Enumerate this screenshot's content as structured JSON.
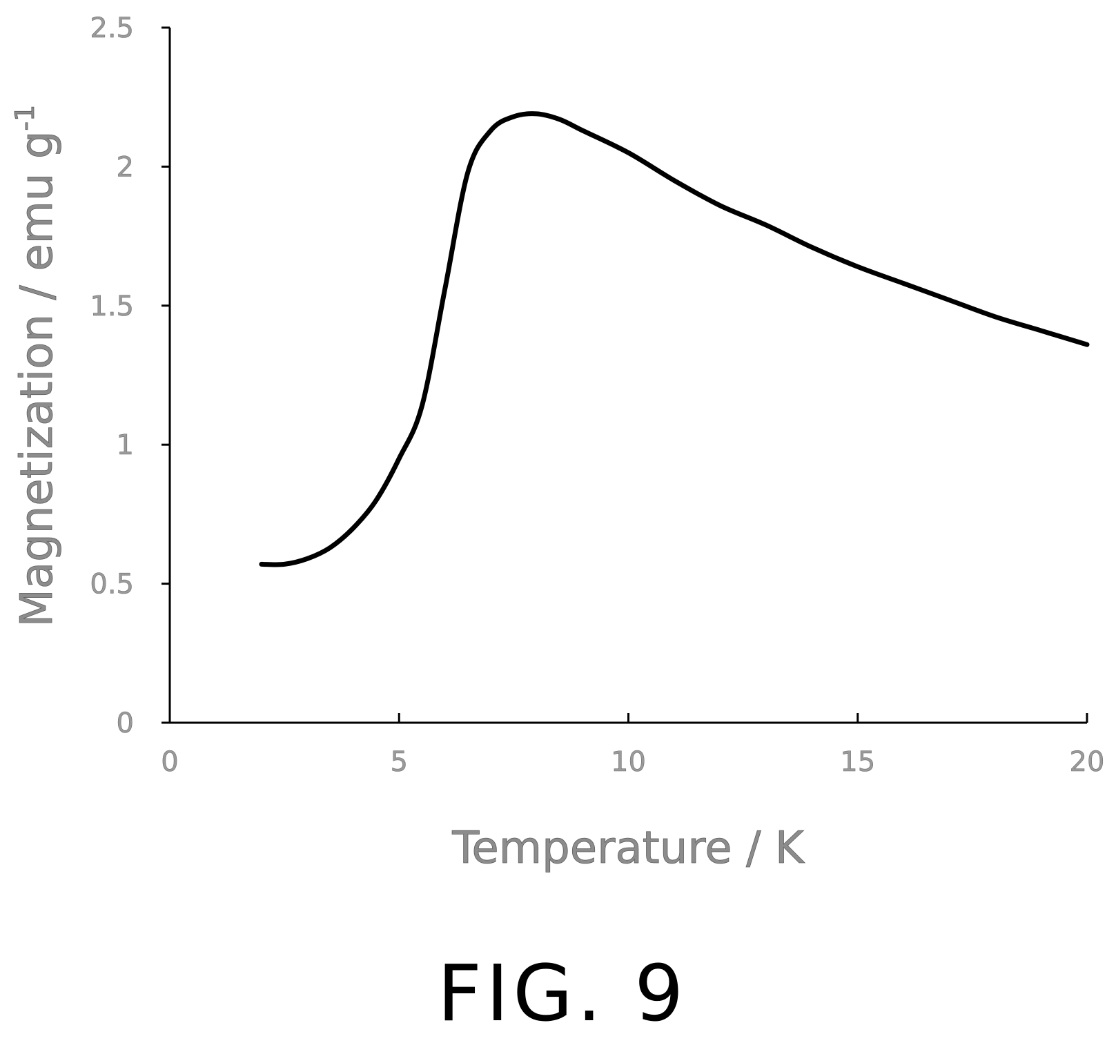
{
  "chart_data": {
    "type": "line",
    "xlabel": "Temperature / K",
    "ylabel_main": "Magnetization / emu g",
    "ylabel_sup": "-1",
    "xlim": [
      0,
      20
    ],
    "ylim": [
      0,
      2.5
    ],
    "x_ticks": [
      {
        "value": 0,
        "label": "0"
      },
      {
        "value": 5,
        "label": "5"
      },
      {
        "value": 10,
        "label": "10"
      },
      {
        "value": 15,
        "label": "15"
      },
      {
        "value": 20,
        "label": "20"
      }
    ],
    "y_ticks": [
      {
        "value": 0,
        "label": "0"
      },
      {
        "value": 0.5,
        "label": "0.5"
      },
      {
        "value": 1,
        "label": "1"
      },
      {
        "value": 1.5,
        "label": "1.5"
      },
      {
        "value": 2,
        "label": "2"
      },
      {
        "value": 2.5,
        "label": "2.5"
      }
    ],
    "grid": false,
    "line_color": "#000000",
    "axis_color": "#000000",
    "series": [
      {
        "x": [
          2.0,
          2.5,
          3.0,
          3.5,
          4.0,
          4.5,
          5.0,
          5.5,
          6.0,
          6.5,
          7.0,
          7.5,
          8.0,
          8.5,
          9.0,
          10.0,
          11.0,
          12.0,
          13.0,
          14.0,
          15.0,
          16.0,
          17.0,
          18.0,
          19.0,
          20.0
        ],
        "y": [
          0.57,
          0.57,
          0.59,
          0.63,
          0.7,
          0.8,
          0.95,
          1.14,
          1.56,
          1.98,
          2.13,
          2.18,
          2.19,
          2.17,
          2.13,
          2.05,
          1.95,
          1.86,
          1.79,
          1.71,
          1.64,
          1.58,
          1.52,
          1.46,
          1.41,
          1.36
        ]
      }
    ]
  },
  "figure_label": "FIG. 9"
}
